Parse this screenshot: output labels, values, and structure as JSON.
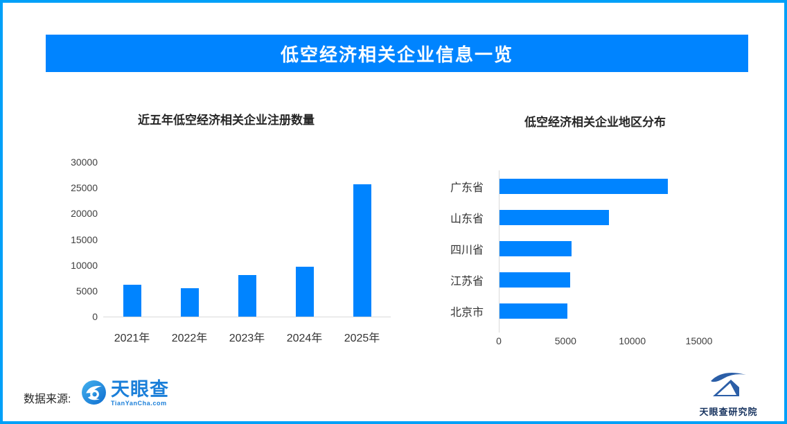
{
  "page": {
    "border_color": "#00A0F8",
    "banner": {
      "title": "低空经济相关企业信息一览",
      "bg": "#0084FF",
      "text_color": "#FFFFFF"
    },
    "footer": {
      "source_label": "数据来源:",
      "tianyancha": {
        "name_text": "天眼查",
        "domain_text": "TianYanCha.com",
        "color": "#1B7FD9"
      },
      "research": {
        "text": "天眼查研究院",
        "color": "#17335F"
      }
    }
  },
  "chart_data": [
    {
      "type": "bar",
      "orientation": "vertical",
      "title": "近五年低空经济相关企业注册数量",
      "categories": [
        "2021年",
        "2022年",
        "2023年",
        "2024年",
        "2025年"
      ],
      "values": [
        6200,
        5500,
        8100,
        9700,
        25700
      ],
      "ylabel": "",
      "xlabel": "",
      "ylim": [
        0,
        30000
      ],
      "yticks": [
        0,
        5000,
        10000,
        15000,
        20000,
        25000,
        30000
      ],
      "grid": false,
      "bar_color": "#0084FF",
      "axis_line_color": "#d9d9d9"
    },
    {
      "type": "bar",
      "orientation": "horizontal",
      "title": "低空经济相关企业地区分布",
      "categories": [
        "广东省",
        "山东省",
        "四川省",
        "江苏省",
        "北京市"
      ],
      "values": [
        12600,
        8200,
        5400,
        5300,
        5100
      ],
      "ylabel": "",
      "xlabel": "",
      "xlim": [
        0,
        15000
      ],
      "xticks": [
        0,
        5000,
        10000,
        15000
      ],
      "grid": false,
      "bar_color": "#0084FF",
      "axis_line_color": "#d9d9d9"
    }
  ]
}
